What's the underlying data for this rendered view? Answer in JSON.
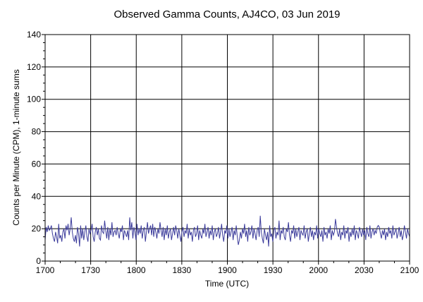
{
  "chart_data": {
    "type": "line",
    "title": "Observed Gamma Counts, AJ4CO, 03 Jun 2019",
    "xlabel": "Time (UTC)",
    "ylabel": "Counts per Minute (CPM), 1-minute sums",
    "x_tick_labels": [
      "1700",
      "1730",
      "1800",
      "1830",
      "1900",
      "1930",
      "2000",
      "2030",
      "2100"
    ],
    "y_tick_labels": [
      "0",
      "20",
      "40",
      "60",
      "80",
      "100",
      "120",
      "140"
    ],
    "xlim": [
      "1700",
      "2100"
    ],
    "ylim": [
      0,
      140
    ],
    "grid": true,
    "x_start_time": "17:00",
    "x_interval_minutes": 1,
    "series": [
      {
        "color": "#3b3b9b",
        "values": [
          13,
          21,
          18,
          22,
          19,
          20,
          22,
          17,
          14,
          12,
          18,
          15,
          11,
          23,
          14,
          16,
          12,
          18,
          20,
          14,
          22,
          19,
          23,
          16,
          20,
          27,
          18,
          14,
          12,
          16,
          11,
          21,
          17,
          9,
          22,
          14,
          20,
          13,
          18,
          22,
          15,
          12,
          20,
          17,
          19,
          23,
          15,
          12,
          18,
          21,
          16,
          20,
          14,
          13,
          22,
          18,
          17,
          25,
          19,
          14,
          21,
          13,
          20,
          16,
          24,
          15,
          18,
          19,
          16,
          21,
          17,
          14,
          20,
          18,
          22,
          13,
          19,
          17,
          15,
          19,
          13,
          27,
          19,
          24,
          14,
          21,
          18,
          13,
          23,
          16,
          20,
          17,
          22,
          14,
          19,
          21,
          12,
          18,
          24,
          17,
          20,
          22,
          16,
          23,
          15,
          21,
          18,
          14,
          20,
          17,
          24,
          19,
          15,
          21,
          13,
          20,
          16,
          22,
          14,
          18,
          20,
          13,
          17,
          21,
          16,
          22,
          19,
          14,
          20,
          16,
          12,
          18,
          21,
          15,
          19,
          17,
          23,
          14,
          20,
          16,
          18,
          12,
          19,
          21,
          15,
          17,
          22,
          13,
          19,
          16,
          14,
          20,
          17,
          23,
          15,
          18,
          21,
          14,
          19,
          16,
          22,
          13,
          18,
          20,
          15,
          17,
          21,
          14,
          18,
          23,
          16,
          12,
          19,
          17,
          22,
          14,
          20,
          15,
          18,
          21,
          13,
          19,
          16,
          22,
          15,
          10,
          13,
          18,
          14,
          20,
          17,
          23,
          15,
          19,
          12,
          21,
          16,
          18,
          22,
          14,
          20,
          17,
          13,
          19,
          21,
          15,
          28,
          18,
          14,
          11,
          20,
          16,
          13,
          18,
          9,
          22,
          15,
          17,
          12,
          19,
          21,
          14,
          18,
          16,
          25,
          13,
          19,
          17,
          21,
          15,
          13,
          20,
          18,
          24,
          16,
          12,
          19,
          17,
          22,
          14,
          20,
          15,
          18,
          21,
          13,
          19,
          17,
          16,
          22,
          14,
          18,
          20,
          12,
          17,
          21,
          15,
          19,
          13,
          18,
          16,
          22,
          14,
          20,
          17,
          15,
          19,
          12,
          21,
          16,
          18,
          14,
          20,
          17,
          22,
          13,
          19,
          16,
          18,
          26,
          21,
          17,
          15,
          20,
          13,
          18,
          16,
          22,
          14,
          19,
          17,
          21,
          12,
          18,
          15,
          20,
          16,
          22,
          13,
          19,
          17,
          14,
          21,
          18,
          15,
          20,
          16,
          19,
          13,
          21,
          17,
          15,
          22,
          14,
          18,
          20,
          16,
          19,
          17,
          21,
          22,
          21,
          17,
          14,
          19,
          16,
          20,
          13,
          18,
          15,
          21,
          17,
          19,
          14,
          22,
          16,
          18,
          20,
          14,
          17,
          21,
          15,
          19,
          13,
          16,
          22,
          18,
          14,
          20,
          17,
          15
        ]
      }
    ]
  }
}
